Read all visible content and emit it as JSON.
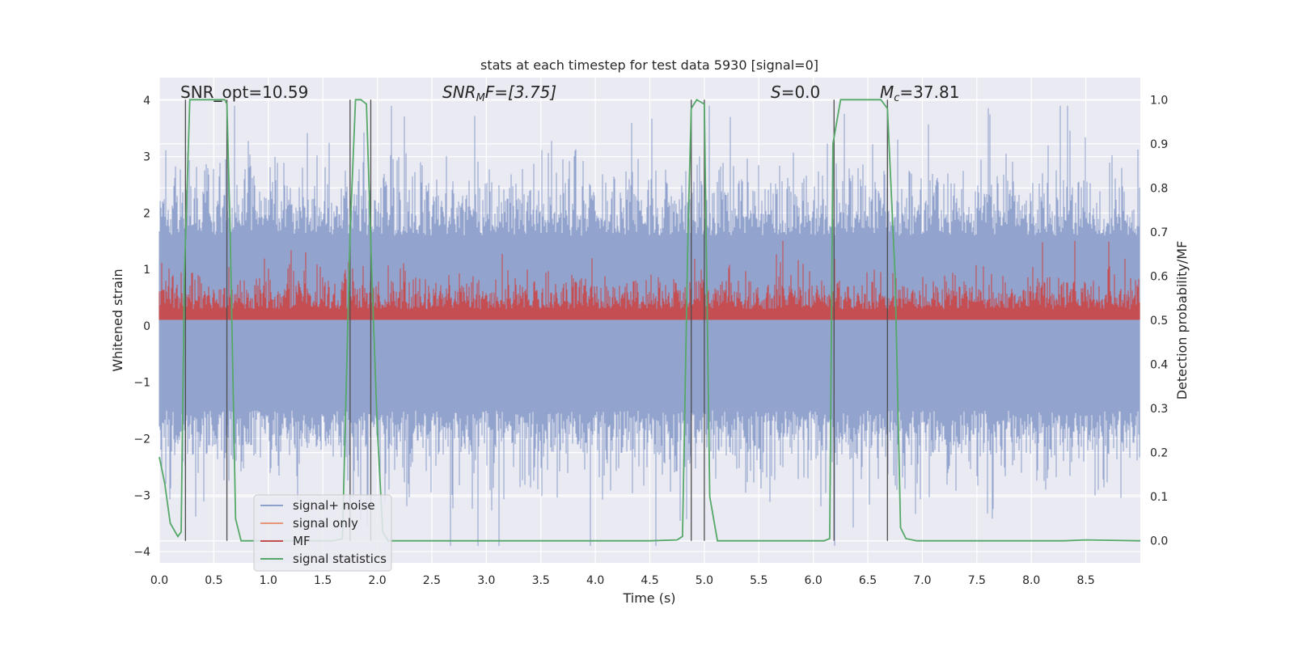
{
  "chart_data": {
    "type": "line",
    "title": "stats at each timestep for test data 5930 [signal=0]",
    "xlabel": "Time (s)",
    "ylabel_left": "Whitened strain",
    "ylabel_right": "Detection probability/MF",
    "xlim": [
      0.0,
      9.0
    ],
    "ylim_left": [
      -4.2,
      4.4
    ],
    "ylim_right": [
      -0.05,
      1.05
    ],
    "x_ticks": [
      "0.0",
      "0.5",
      "1.0",
      "1.5",
      "2.0",
      "2.5",
      "3.0",
      "3.5",
      "4.0",
      "4.5",
      "5.0",
      "5.5",
      "6.0",
      "6.5",
      "7.0",
      "7.5",
      "8.0",
      "8.5"
    ],
    "y_left_ticks": [
      "4",
      "3",
      "2",
      "1",
      "0",
      "−1",
      "−2",
      "−3",
      "−4"
    ],
    "y_right_ticks": [
      "1.0",
      "0.9",
      "0.8",
      "0.7",
      "0.6",
      "0.5",
      "0.4",
      "0.3",
      "0.2",
      "0.1",
      "0.0"
    ],
    "annotations": {
      "snr_opt": "SNR_opt=10.59",
      "snr_mf_sym": "SNR",
      "snr_mf_sub": "M",
      "snr_mf_rest": "F=[3.75]",
      "s_sym": "S",
      "s_rest": "=0.0",
      "mc_sym": "M",
      "mc_sub": "c",
      "mc_rest": "=37.81"
    },
    "legend": [
      "signal+ noise",
      "signal only",
      "MF",
      "signal statistics"
    ],
    "colors": {
      "noise": "#8da0cb",
      "signal_only": "#e8967a",
      "mf": "#c44e52",
      "stats": "#55a868",
      "vlines": "#4d4d4d",
      "axes_bg": "#eaeaf2",
      "grid": "#ffffff"
    },
    "noise_band": {
      "low_q": -1.5,
      "high_q": 1.6,
      "spike_max": 3.9,
      "spike_min": -3.9
    },
    "mf_band": {
      "base": 0.505,
      "amplitude_max": 0.68,
      "units": "right_axis"
    },
    "series_stats": {
      "name": "signal statistics",
      "x": [
        0.0,
        0.05,
        0.1,
        0.17,
        0.2,
        0.23,
        0.28,
        0.5,
        0.6,
        0.62,
        0.65,
        0.7,
        0.75,
        1.0,
        1.6,
        1.68,
        1.75,
        1.8,
        1.85,
        1.9,
        1.95,
        2.0,
        2.05,
        2.1,
        2.5,
        4.5,
        4.75,
        4.8,
        4.85,
        4.88,
        4.93,
        5.0,
        5.05,
        5.12,
        5.5,
        6.1,
        6.15,
        6.18,
        6.25,
        6.55,
        6.62,
        6.68,
        6.75,
        6.8,
        6.85,
        6.95,
        7.0,
        8.3,
        8.5,
        9.0
      ],
      "y": [
        0.19,
        0.13,
        0.04,
        0.01,
        0.02,
        0.6,
        1.0,
        1.0,
        1.0,
        0.99,
        0.7,
        0.05,
        0.0,
        0.0,
        0.0,
        0.005,
        0.7,
        1.0,
        1.0,
        0.99,
        0.6,
        0.25,
        0.02,
        0.0,
        0.0,
        0.0,
        0.002,
        0.01,
        0.7,
        0.98,
        1.0,
        0.99,
        0.1,
        0.0,
        0.0,
        0.0,
        0.005,
        0.9,
        1.0,
        1.0,
        1.0,
        0.98,
        0.6,
        0.03,
        0.005,
        0.0,
        0.0,
        0.0,
        0.002,
        0.0
      ]
    },
    "vertical_lines_x": [
      0.24,
      0.62,
      1.75,
      1.94,
      4.88,
      5.0,
      6.19,
      6.68
    ],
    "vertical_lines_range": [
      0.0,
      1.0
    ]
  }
}
